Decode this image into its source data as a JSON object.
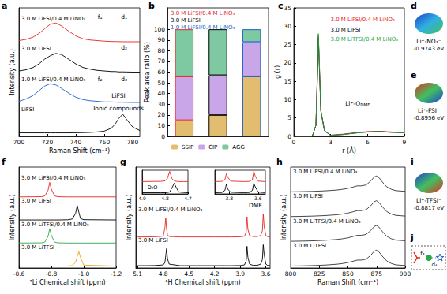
{
  "chart_data": [
    {
      "panel": "a",
      "type": "line",
      "xlabel": "Raman Shift (cm⁻¹)",
      "ylabel": "Intensity (a.u.)",
      "tick_labels": "x",
      "xlim": [
        700,
        785
      ],
      "xticks": [
        700,
        720,
        740,
        760,
        780
      ],
      "ylim": [
        0,
        11
      ],
      "x": [
        700,
        705,
        710,
        714,
        718,
        722,
        726,
        730,
        735,
        740,
        745,
        750,
        755,
        760,
        765,
        768,
        770,
        773,
        776,
        780,
        785
      ],
      "series": [
        {
          "name": "3.0 M LiFSI/0.4 M LiNO₃",
          "color": "#e8261f",
          "values": [
            8.2,
            8.3,
            8.5,
            8.8,
            9.2,
            9.6,
            9.7,
            9.45,
            9.0,
            8.6,
            8.35,
            8.25,
            8.2,
            8.15,
            8.12,
            8.12,
            8.11,
            8.1,
            8.1,
            8.1,
            8.1
          ]
        },
        {
          "name": "3.0 M LiFSI",
          "color": "#000000",
          "values": [
            5.6,
            5.7,
            5.9,
            6.2,
            6.6,
            6.9,
            7.1,
            7.0,
            6.6,
            6.2,
            5.9,
            5.75,
            5.65,
            5.6,
            5.55,
            5.55,
            5.52,
            5.52,
            5.51,
            5.5,
            5.5
          ]
        },
        {
          "name": "1.0 M LiFSI/0.4 M LiNO₃",
          "color": "#1f5fc8",
          "values": [
            3.0,
            3.2,
            3.5,
            3.9,
            4.3,
            4.5,
            4.4,
            4.1,
            3.7,
            3.35,
            3.15,
            3.05,
            3.0,
            2.95,
            2.95,
            2.93,
            2.92,
            2.92,
            2.91,
            2.9,
            2.9
          ]
        },
        {
          "name": "LiFSI",
          "color": "#000000",
          "values": [
            0.3,
            0.3,
            0.3,
            0.3,
            0.3,
            0.3,
            0.3,
            0.3,
            0.3,
            0.31,
            0.32,
            0.34,
            0.38,
            0.45,
            0.7,
            1.1,
            1.5,
            1.9,
            1.4,
            0.8,
            0.5
          ]
        }
      ],
      "annotations": [
        {
          "text": "f₁",
          "x": 757,
          "y": 10.2
        },
        {
          "text": "d₁",
          "x": 774,
          "y": 10.2
        },
        {
          "text": "d₂",
          "x": 774,
          "y": 7.6
        },
        {
          "text": "f₂",
          "x": 757,
          "y": 4.9
        },
        {
          "text": "d₃",
          "x": 774,
          "y": 4.9
        },
        {
          "text": "LiFSI",
          "x": 770,
          "y": 3.5
        },
        {
          "text": "Ionic compounds",
          "x": 770,
          "y": 2.4
        }
      ]
    },
    {
      "panel": "b",
      "type": "bar",
      "ylabel": "Peak area ratio (%)",
      "tick_labels": "y",
      "stacked": true,
      "legend": "bottom",
      "categories": [
        "3.0 M LiFSI/0.4 M LiNO₃",
        "3.0 M LiFSI",
        "1.0 M LiFSI/0.4 M LiNO₃"
      ],
      "colors": [
        "#e8261f",
        "#000000",
        "#1f5fc8"
      ],
      "ylim": [
        0,
        120
      ],
      "yticks": [
        0,
        10,
        20,
        30,
        40,
        50,
        60,
        70,
        80,
        90,
        100
      ],
      "series": [
        {
          "name": "SSIP",
          "color": "#e3bd6f",
          "values": [
            15,
            20,
            56
          ]
        },
        {
          "name": "CIP",
          "color": "#c9a6e8",
          "values": [
            41,
            37,
            32
          ]
        },
        {
          "name": "AGG",
          "color": "#7fc9a2",
          "values": [
            44,
            43,
            12
          ]
        }
      ]
    },
    {
      "panel": "c",
      "type": "line",
      "xlabel": "r (Å)",
      "ylabel": "g (r)",
      "legend": "upper right",
      "xlim": [
        0,
        9
      ],
      "xticks": [
        0,
        3,
        6,
        9
      ],
      "ylim": [
        0,
        35
      ],
      "yticks": [
        0,
        5,
        10,
        15,
        20,
        25,
        30,
        35
      ],
      "x": [
        0,
        1.5,
        1.8,
        1.9,
        2.0,
        2.1,
        2.2,
        2.5,
        3,
        4,
        5,
        6,
        7,
        8,
        9
      ],
      "series": [
        {
          "name": "3.0 M LiFSI/0.4 M LiNO₃",
          "color": "#e8261f",
          "values": [
            0,
            0,
            3,
            14.5,
            27.5,
            17.5,
            7,
            1.5,
            0.3,
            0.6,
            1.0,
            1.3,
            1.4,
            1.2,
            1.05
          ]
        },
        {
          "name": "3.0 M LiFSI",
          "color": "#000000",
          "values": [
            0,
            0,
            3,
            14,
            27,
            17,
            7,
            1.5,
            0.3,
            0.5,
            0.9,
            1.2,
            1.3,
            1.1,
            1.0
          ]
        },
        {
          "name": "3.0 M LiTFSI/0.4 M LiNO₃",
          "color": "#2aa84a",
          "values": [
            0,
            0,
            3,
            15,
            28,
            18,
            7,
            1.5,
            0.3,
            0.5,
            0.9,
            1.2,
            1.3,
            1.1,
            1.0
          ]
        }
      ],
      "annotations": [
        {
          "text": "Li⁺-O",
          "sub": "DME",
          "x": 5.2,
          "y": 9
        }
      ]
    },
    {
      "panel": "f",
      "type": "line",
      "xlabel": "⁷Li Chemical shift (ppm)",
      "ylabel": "Intensity (a.u.)",
      "tick_labels": "x",
      "xlim": [
        -0.6,
        -1.2
      ],
      "xticks": [
        -0.6,
        -0.8,
        {
          "value": -1,
          "label": "-1.0"
        },
        -1.2
      ],
      "ylim": [
        0,
        10.5
      ],
      "x": [
        -0.6,
        -0.74,
        -0.76,
        -0.78,
        -0.79,
        -0.8,
        -0.82,
        -0.84,
        -0.9,
        -0.93,
        -0.95,
        -0.96,
        -0.97,
        -0.98,
        -1.0,
        -1.2
      ],
      "series": [
        {
          "name": "3.0 M LiFSI/0.4 M LiNO₃",
          "color": "#e8261f",
          "values": [
            7.4,
            7.42,
            7.5,
            8.1,
            8.9,
            8.2,
            7.5,
            7.42,
            7.4,
            7.4,
            7.4,
            7.4,
            7.4,
            7.4,
            7.4,
            7.4
          ]
        },
        {
          "name": "3.0 M LiFSI",
          "color": "#000000",
          "values": [
            5.0,
            5.0,
            5.0,
            5.0,
            5.0,
            5.0,
            5.0,
            5.0,
            5.02,
            5.1,
            5.7,
            6.5,
            5.8,
            5.15,
            5.03,
            5.0
          ]
        },
        {
          "name": "3.0 M LiTFSI/0.4 M LiNO₃",
          "color": "#2aa84a",
          "values": [
            2.6,
            2.62,
            2.7,
            3.3,
            4.1,
            3.4,
            2.7,
            2.62,
            2.6,
            2.6,
            2.6,
            2.6,
            2.6,
            2.6,
            2.6,
            2.6
          ]
        },
        {
          "name": "3.0 M LiTFSI",
          "color": "#f0a020",
          "values": [
            0.2,
            0.2,
            0.2,
            0.2,
            0.2,
            0.2,
            0.2,
            0.2,
            0.21,
            0.25,
            0.6,
            1.2,
            1.7,
            1.1,
            0.3,
            0.2
          ]
        }
      ]
    },
    {
      "panel": "g",
      "type": "line",
      "xlabel": "¹H Chemical shift (ppm)",
      "ylabel": "Intensity (a.u.)",
      "tick_labels": "x",
      "xlim": [
        5.12,
        3.55
      ],
      "xticks": [
        5.1,
        4.8,
        4.5,
        4.2,
        3.9,
        3.6
      ],
      "ylim": [
        0,
        13
      ],
      "x": [
        5.1,
        5.0,
        4.9,
        4.8,
        4.78,
        4.77,
        4.76,
        4.75,
        4.73,
        4.6,
        4.4,
        4.2,
        4.0,
        3.9,
        3.85,
        3.83,
        3.82,
        3.81,
        3.79,
        3.75,
        3.7,
        3.66,
        3.64,
        3.63,
        3.62,
        3.6,
        3.58,
        3.55
      ],
      "series": [
        {
          "name": "3.0 M LiFSI/0.4 M LiNO₃",
          "color": "#e8261f",
          "values": [
            4.0,
            4.0,
            4.02,
            4.1,
            5.2,
            6.5,
            5.0,
            4.3,
            4.05,
            4.0,
            4.0,
            4.0,
            4.0,
            4.02,
            4.1,
            4.6,
            6.6,
            5.0,
            4.2,
            4.05,
            4.05,
            4.2,
            4.8,
            7.0,
            5.4,
            4.2,
            4.05,
            4.0
          ]
        },
        {
          "name": "3.0 M LiFSI",
          "color": "#000000",
          "values": [
            0.3,
            0.3,
            0.32,
            0.4,
            0.7,
            1.6,
            2.5,
            1.2,
            0.5,
            0.3,
            0.3,
            0.3,
            0.3,
            0.32,
            0.4,
            0.9,
            2.8,
            1.4,
            0.5,
            0.35,
            0.35,
            0.5,
            1.1,
            3.0,
            1.8,
            0.5,
            0.35,
            0.3
          ]
        }
      ],
      "annotations": [
        {
          "text": "DME",
          "x": 3.72,
          "y": 8.1
        }
      ]
    },
    {
      "type": "line",
      "tick_labels": "x",
      "xlim": [
        4.9,
        4.7
      ],
      "xticks": [
        4.9,
        4.8,
        4.7
      ],
      "ylim": [
        0,
        10
      ],
      "x": [
        4.9,
        4.82,
        4.8,
        4.79,
        4.78,
        4.77,
        4.76,
        4.75,
        4.74,
        4.72,
        4.7
      ],
      "series": [
        {
          "color": "#e8261f",
          "values": [
            5.2,
            5.3,
            5.5,
            6.5,
            9.5,
            6.5,
            5.5,
            5.3,
            5.2,
            5.2,
            5.2
          ]
        },
        {
          "color": "#000000",
          "values": [
            0.5,
            0.5,
            0.5,
            0.6,
            0.8,
            2.5,
            4.5,
            2.5,
            0.8,
            0.6,
            0.5
          ]
        }
      ],
      "annotations": [
        {
          "text": "D₂O",
          "x": 4.855,
          "y": 2.6
        }
      ]
    },
    {
      "type": "line",
      "tick_labels": "x",
      "xlim": [
        3.9,
        3.55
      ],
      "xticks": [
        3.8,
        3.6
      ],
      "ylim": [
        0,
        10
      ],
      "x": [
        3.9,
        3.85,
        3.83,
        3.82,
        3.81,
        3.79,
        3.7,
        3.66,
        3.64,
        3.63,
        3.62,
        3.6,
        3.55
      ],
      "series": [
        {
          "color": "#e8261f",
          "values": [
            5.2,
            5.3,
            6,
            8.5,
            7,
            5.4,
            5.2,
            5.3,
            6,
            9.5,
            7.5,
            5.4,
            5.2
          ]
        },
        {
          "color": "#000000",
          "values": [
            0.5,
            0.6,
            1.5,
            4,
            2,
            0.7,
            0.5,
            0.6,
            1.5,
            4.5,
            3,
            0.8,
            0.5
          ]
        }
      ]
    },
    {
      "panel": "h",
      "type": "line",
      "xlabel": "Raman Shift (cm⁻¹)",
      "ylabel": "Intensity (a.u.)",
      "tick_labels": "x",
      "xlim": [
        800,
        900
      ],
      "xticks": [
        800,
        825,
        850,
        875,
        900
      ],
      "ylim": [
        0,
        10.2
      ],
      "x": [
        800,
        810,
        820,
        830,
        840,
        845,
        850,
        855,
        858,
        862,
        866,
        870,
        873,
        875,
        877,
        880,
        884,
        888,
        892,
        900
      ],
      "series": [
        {
          "name": "3.0 M LiFSI/0.4 M LiNO₃",
          "color": "#333333",
          "values": [
            7.7,
            7.72,
            7.75,
            7.8,
            7.88,
            7.95,
            8.05,
            8.2,
            8.3,
            8.3,
            8.4,
            8.8,
            9.2,
            9.3,
            9.15,
            8.7,
            8.2,
            7.95,
            7.82,
            7.75
          ]
        },
        {
          "name": "3.0 M LiFSI",
          "color": "#333333",
          "values": [
            5.2,
            5.22,
            5.25,
            5.3,
            5.38,
            5.45,
            5.55,
            5.7,
            5.8,
            5.8,
            5.9,
            6.3,
            6.7,
            6.8,
            6.65,
            6.2,
            5.7,
            5.45,
            5.32,
            5.25
          ]
        },
        {
          "name": "3.0 M LiTFSI/0.4 M LiNO₃",
          "color": "#333333",
          "values": [
            2.7,
            2.72,
            2.75,
            2.8,
            2.88,
            2.95,
            3.05,
            3.2,
            3.3,
            3.3,
            3.4,
            3.8,
            4.2,
            4.3,
            4.15,
            3.7,
            3.2,
            2.95,
            2.82,
            2.75
          ]
        },
        {
          "name": "3.0 M LiTFSI",
          "color": "#333333",
          "values": [
            0.2,
            0.22,
            0.25,
            0.3,
            0.38,
            0.45,
            0.55,
            0.7,
            0.8,
            0.8,
            0.9,
            1.3,
            1.7,
            1.8,
            1.65,
            1.2,
            0.7,
            0.45,
            0.32,
            0.25
          ]
        }
      ]
    }
  ],
  "esp_maps": [
    {
      "panel": "d",
      "label": "Li⁺-NO₃⁻",
      "energy": "-0.9743 eV"
    },
    {
      "panel": "e",
      "label": "Li⁺-FSI⁻",
      "energy": "-0.8956 eV"
    },
    {
      "panel": "i",
      "label": "Li⁺-TFSI⁻",
      "energy": "-0.8817 eV"
    }
  ],
  "diagram": {
    "panel": "j",
    "labels": [
      "f₃",
      "d₄"
    ]
  }
}
